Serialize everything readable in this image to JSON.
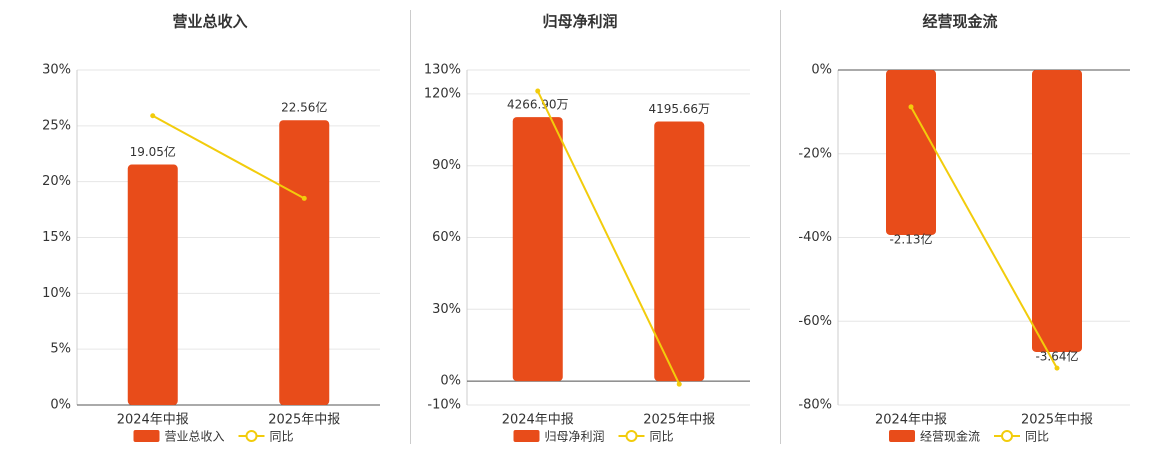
{
  "chart_data": [
    {
      "type": "bar",
      "title": "营业总收入",
      "categories": [
        "2024年中报",
        "2025年中报"
      ],
      "series": [
        {
          "name": "营业总收入",
          "type": "bar",
          "color": "#e84c1a",
          "axis": "y2",
          "values": [
            19.05,
            22.56
          ],
          "value_labels": [
            "19.05亿",
            "22.56亿"
          ]
        },
        {
          "name": "同比",
          "type": "line",
          "color": "#f2cc0c",
          "values": [
            25.9,
            18.5
          ]
        }
      ],
      "ylim": [
        0,
        30
      ],
      "yticks": [
        {
          "value": 0,
          "label": "0%"
        },
        {
          "value": 5,
          "label": "5%"
        },
        {
          "value": 10,
          "label": "10%"
        },
        {
          "value": 15,
          "label": "15%"
        },
        {
          "value": 20,
          "label": "20%"
        },
        {
          "value": 25,
          "label": "25%"
        },
        {
          "value": 30,
          "label": "30%"
        }
      ],
      "y2lim": [
        0,
        26.54
      ],
      "grid": true
    },
    {
      "type": "bar",
      "title": "归母净利润",
      "categories": [
        "2024年中报",
        "2025年中报"
      ],
      "series": [
        {
          "name": "归母净利润",
          "type": "bar",
          "color": "#e84c1a",
          "axis": "y2",
          "values": [
            4266.9,
            4195.66
          ],
          "value_labels": [
            "4266.90万",
            "4195.66万"
          ]
        },
        {
          "name": "同比",
          "type": "line",
          "color": "#f2cc0c",
          "values": [
            121.2,
            -1.3
          ]
        }
      ],
      "ylim": [
        -10,
        130
      ],
      "yticks": [
        {
          "value": -10,
          "label": "-10%"
        },
        {
          "value": 0,
          "label": "0%"
        },
        {
          "value": 30,
          "label": "30%"
        },
        {
          "value": 60,
          "label": "60%"
        },
        {
          "value": 90,
          "label": "90%"
        },
        {
          "value": 120,
          "label": "120%"
        },
        {
          "value": 130,
          "label": "130%"
        }
      ],
      "y2lim": [
        -386.8,
        5028.6
      ],
      "grid": true
    },
    {
      "type": "bar",
      "title": "经营现金流",
      "categories": [
        "2024年中报",
        "2025年中报"
      ],
      "series": [
        {
          "name": "经营现金流",
          "type": "bar",
          "color": "#e84c1a",
          "axis": "y2",
          "values": [
            -2.13,
            -3.64
          ],
          "value_labels": [
            "-2.13亿",
            "-3.64亿"
          ]
        },
        {
          "name": "同比",
          "type": "line",
          "color": "#f2cc0c",
          "values": [
            -8.8,
            -71.2
          ]
        }
      ],
      "ylim": [
        -80,
        0
      ],
      "yticks": [
        {
          "value": -80,
          "label": "-80%"
        },
        {
          "value": -60,
          "label": "-60%"
        },
        {
          "value": -40,
          "label": "-40%"
        },
        {
          "value": -20,
          "label": "-20%"
        },
        {
          "value": 0,
          "label": "0%"
        }
      ],
      "y2lim": [
        -4.325,
        0
      ],
      "grid": true
    }
  ]
}
